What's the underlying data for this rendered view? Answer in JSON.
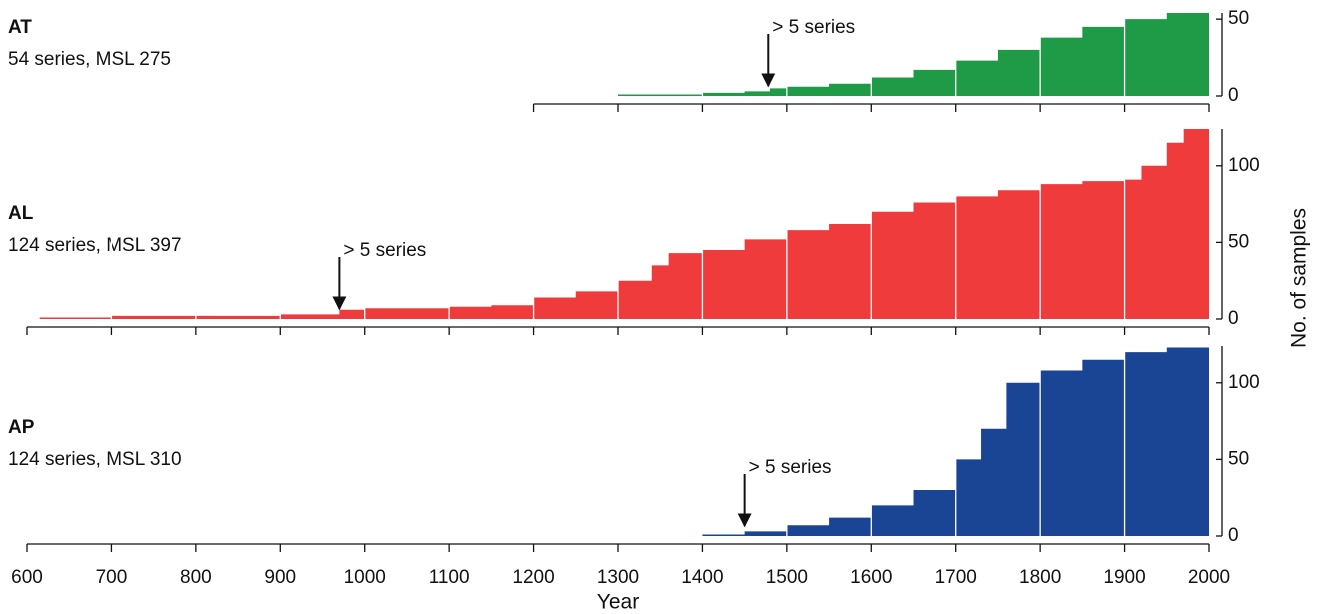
{
  "chart_data": [
    {
      "type": "area",
      "title": "AT",
      "subtitle": "54 series, MSL 275",
      "color": "#1f9a46",
      "annotation": {
        "text": "> 5 series",
        "x": 1478
      },
      "x": [
        1300,
        1400,
        1450,
        1480,
        1500,
        1550,
        1600,
        1650,
        1700,
        1750,
        1800,
        1850,
        1900,
        1950,
        2000
      ],
      "values": [
        1,
        2,
        3,
        5,
        6,
        8,
        12,
        17,
        23,
        30,
        38,
        45,
        50,
        54,
        54
      ],
      "xlim": [
        1200,
        2000
      ],
      "xticks": [
        1200,
        1300,
        1400,
        1500,
        1600,
        1700,
        1800,
        1900,
        2000
      ],
      "ylim": [
        0,
        54
      ],
      "yticks": [
        0,
        50
      ],
      "grid": true
    },
    {
      "type": "area",
      "title": "AL",
      "subtitle": "124 series, MSL 397",
      "color": "#ef3b3b",
      "annotation": {
        "text": "> 5 series",
        "x": 970
      },
      "x": [
        615,
        700,
        800,
        900,
        970,
        1000,
        1100,
        1150,
        1200,
        1250,
        1300,
        1340,
        1360,
        1400,
        1450,
        1500,
        1550,
        1600,
        1650,
        1700,
        1750,
        1800,
        1850,
        1900,
        1920,
        1950,
        1970,
        2000
      ],
      "values": [
        1,
        2,
        2,
        3,
        6,
        7,
        8,
        9,
        14,
        18,
        25,
        35,
        43,
        45,
        52,
        58,
        62,
        70,
        76,
        80,
        84,
        88,
        90,
        91,
        100,
        115,
        124,
        124
      ],
      "xlim": [
        600,
        2000
      ],
      "xticks": [
        600,
        700,
        800,
        900,
        1000,
        1100,
        1200,
        1300,
        1400,
        1500,
        1600,
        1700,
        1800,
        1900,
        2000
      ],
      "ylim": [
        0,
        124
      ],
      "yticks": [
        0,
        50,
        100
      ],
      "grid": true
    },
    {
      "type": "area",
      "title": "AP",
      "subtitle": "124 series, MSL 310",
      "color": "#1a4594",
      "annotation": {
        "text": "> 5 series",
        "x": 1450
      },
      "x": [
        1400,
        1450,
        1500,
        1550,
        1600,
        1650,
        1700,
        1730,
        1760,
        1800,
        1850,
        1900,
        1950,
        2000
      ],
      "values": [
        1,
        3,
        7,
        12,
        20,
        30,
        50,
        70,
        100,
        108,
        115,
        120,
        123,
        124
      ],
      "xlim": [
        600,
        2000
      ],
      "xticks": [
        600,
        700,
        800,
        900,
        1000,
        1100,
        1200,
        1300,
        1400,
        1500,
        1600,
        1700,
        1800,
        1900,
        2000
      ],
      "ylim": [
        0,
        124
      ],
      "yticks": [
        0,
        50,
        100
      ],
      "grid": true,
      "xlabel": "Year",
      "ylabel": "No. of samples"
    }
  ]
}
